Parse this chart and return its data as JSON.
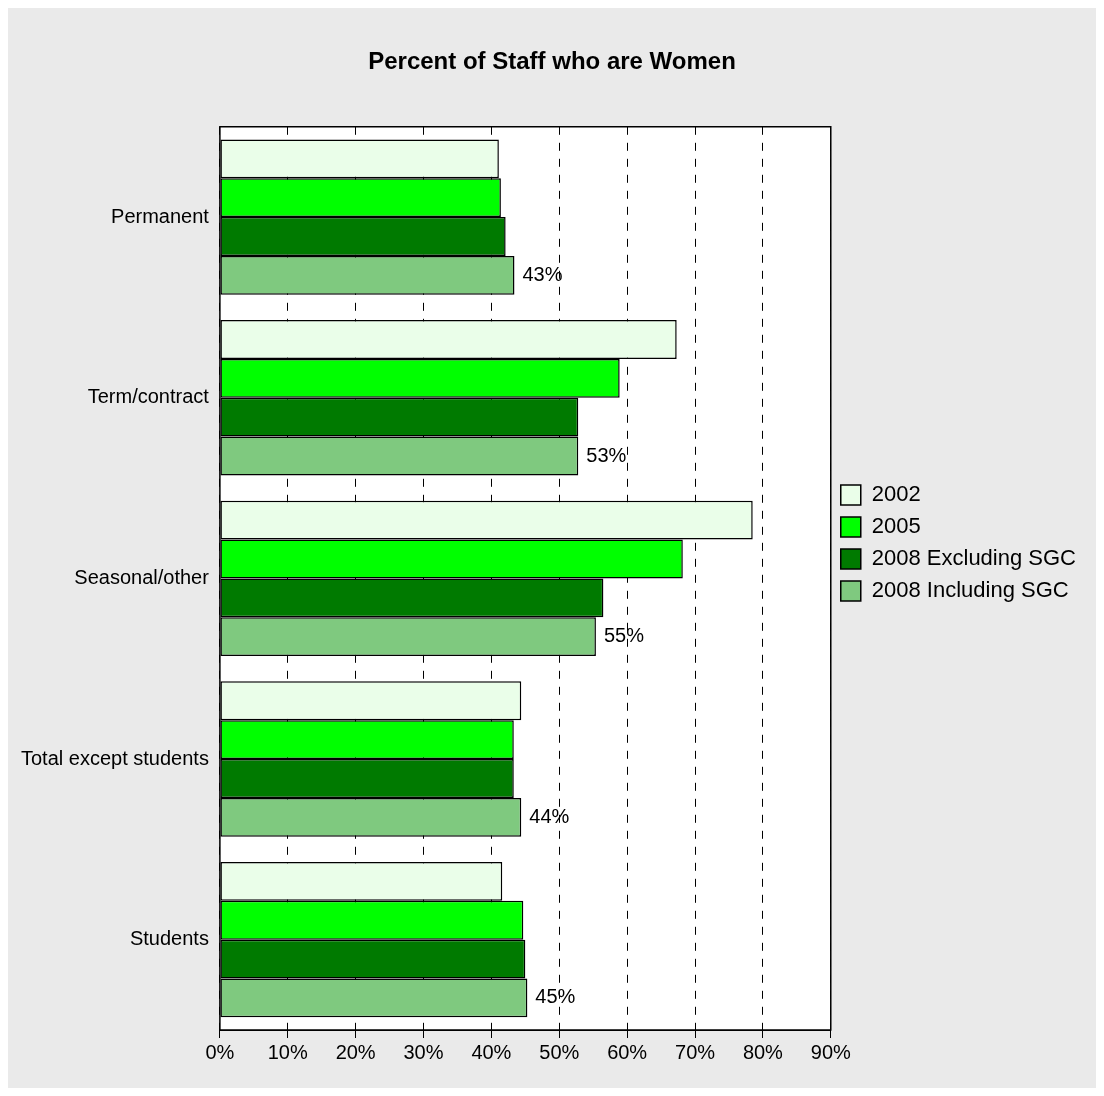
{
  "chart_data": {
    "type": "bar",
    "orientation": "horizontal",
    "title": "Percent of Staff who are Women",
    "categories": [
      "Permanent",
      "Term/contract",
      "Seasonal/other",
      "Total except students",
      "Students"
    ],
    "series": [
      {
        "name": "2002",
        "color": "#eafee9",
        "values": [
          41.1,
          67.3,
          78.5,
          44.4,
          41.6
        ]
      },
      {
        "name": "2005",
        "color": "#00ff00",
        "values": [
          41.4,
          58.9,
          68.2,
          43.3,
          44.7
        ]
      },
      {
        "name": "2008 Excluding SGC",
        "color": "#007a00",
        "values": [
          42.1,
          52.8,
          56.5,
          43.3,
          45.0
        ]
      },
      {
        "name": "2008 Including SGC",
        "color": "#7fc97f",
        "values": [
          43.4,
          52.8,
          55.4,
          44.4,
          45.3
        ],
        "value_labels": [
          "43%",
          "53%",
          "55%",
          "44%",
          "45%"
        ]
      }
    ],
    "xlim": [
      0,
      90
    ],
    "xticks": [
      {
        "value": 0,
        "label": "0%"
      },
      {
        "value": 10,
        "label": "10%"
      },
      {
        "value": 20,
        "label": "20%"
      },
      {
        "value": 30,
        "label": "30%"
      },
      {
        "value": 40,
        "label": "40%"
      },
      {
        "value": 50,
        "label": "50%"
      },
      {
        "value": 60,
        "label": "60%"
      },
      {
        "value": 70,
        "label": "70%"
      },
      {
        "value": 80,
        "label": "80%"
      },
      {
        "value": 90,
        "label": "90%"
      }
    ],
    "grid": "x",
    "legend": "right"
  }
}
